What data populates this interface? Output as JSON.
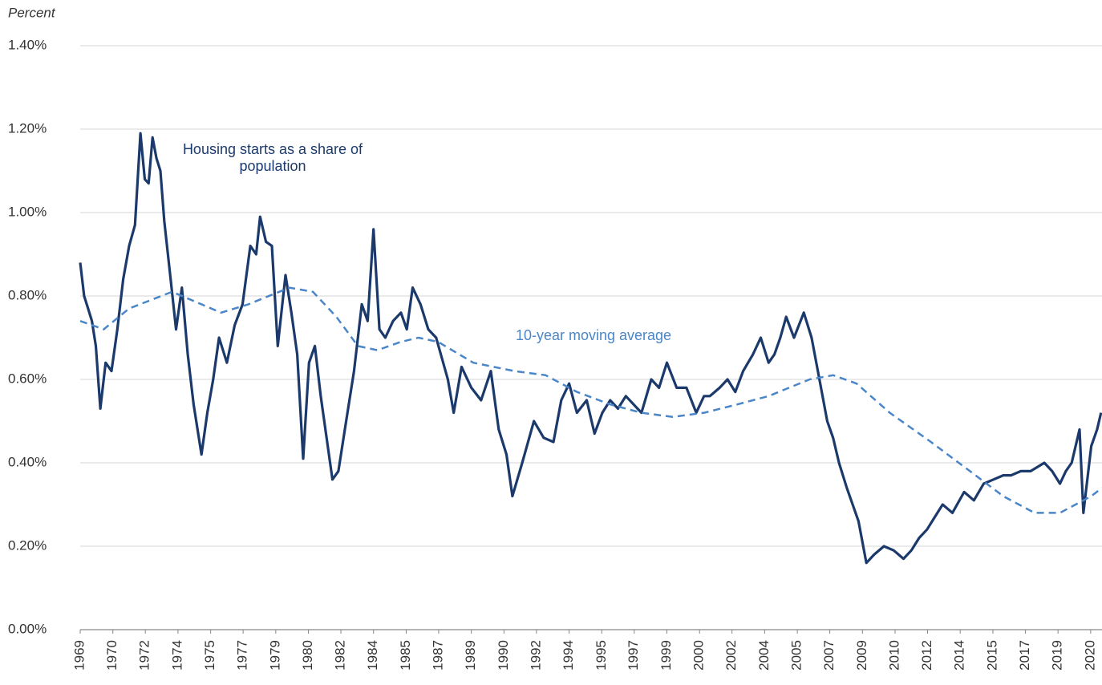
{
  "chart_data": {
    "type": "line",
    "ylabel": "Percent",
    "xlim": [
      1969,
      2021.25
    ],
    "ylim": [
      0,
      1.4
    ],
    "yticks": [
      {
        "value": 0,
        "label": "0.00%"
      },
      {
        "value": 0.2,
        "label": "0.20%"
      },
      {
        "value": 0.4,
        "label": "0.40%"
      },
      {
        "value": 0.6,
        "label": "0.60%"
      },
      {
        "value": 0.8,
        "label": "0.80%"
      },
      {
        "value": 1.0,
        "label": "1.00%"
      },
      {
        "value": 1.2,
        "label": "1.20%"
      },
      {
        "value": 1.4,
        "label": "1.40%"
      }
    ],
    "xticks": [
      {
        "value": 1969.0,
        "label": "1969"
      },
      {
        "value": 1970.67,
        "label": "1970"
      },
      {
        "value": 1972.33,
        "label": "1972"
      },
      {
        "value": 1974.0,
        "label": "1974"
      },
      {
        "value": 1975.67,
        "label": "1975"
      },
      {
        "value": 1977.33,
        "label": "1977"
      },
      {
        "value": 1979.0,
        "label": "1979"
      },
      {
        "value": 1980.67,
        "label": "1980"
      },
      {
        "value": 1982.33,
        "label": "1982"
      },
      {
        "value": 1984.0,
        "label": "1984"
      },
      {
        "value": 1985.67,
        "label": "1985"
      },
      {
        "value": 1987.33,
        "label": "1987"
      },
      {
        "value": 1989.0,
        "label": "1989"
      },
      {
        "value": 1990.67,
        "label": "1990"
      },
      {
        "value": 1992.33,
        "label": "1992"
      },
      {
        "value": 1994.0,
        "label": "1994"
      },
      {
        "value": 1995.67,
        "label": "1995"
      },
      {
        "value": 1997.33,
        "label": "1997"
      },
      {
        "value": 1999.0,
        "label": "1999"
      },
      {
        "value": 2000.67,
        "label": "2000"
      },
      {
        "value": 2002.33,
        "label": "2002"
      },
      {
        "value": 2004.0,
        "label": "2004"
      },
      {
        "value": 2005.67,
        "label": "2005"
      },
      {
        "value": 2007.33,
        "label": "2007"
      },
      {
        "value": 2009.0,
        "label": "2009"
      },
      {
        "value": 2010.67,
        "label": "2010"
      },
      {
        "value": 2012.33,
        "label": "2012"
      },
      {
        "value": 2014.0,
        "label": "2014"
      },
      {
        "value": 2015.67,
        "label": "2015"
      },
      {
        "value": 2017.33,
        "label": "2017"
      },
      {
        "value": 2019.0,
        "label": "2019"
      },
      {
        "value": 2020.67,
        "label": "2020"
      }
    ],
    "grid": true,
    "series": [
      {
        "name": "Housing starts as a share of population",
        "color": "#1b3a6b",
        "dashed": false,
        "x": [
          1969.0,
          1969.2,
          1969.4,
          1969.6,
          1969.8,
          1970.03,
          1970.3,
          1970.6,
          1970.9,
          1971.2,
          1971.5,
          1971.8,
          1972.08,
          1972.3,
          1972.5,
          1972.7,
          1972.9,
          1973.1,
          1973.3,
          1973.6,
          1973.9,
          1974.2,
          1974.5,
          1974.8,
          1975.2,
          1975.5,
          1975.8,
          1976.1,
          1976.5,
          1976.9,
          1977.3,
          1977.7,
          1978.0,
          1978.2,
          1978.5,
          1978.8,
          1979.1,
          1979.5,
          1979.8,
          1980.1,
          1980.4,
          1980.7,
          1981.0,
          1981.3,
          1981.6,
          1981.9,
          1982.2,
          1982.6,
          1983.0,
          1983.4,
          1983.7,
          1984.0,
          1984.3,
          1984.6,
          1985.0,
          1985.4,
          1985.7,
          1986.0,
          1986.4,
          1986.8,
          1987.2,
          1987.5,
          1987.8,
          1988.1,
          1988.5,
          1989.0,
          1989.5,
          1990.0,
          1990.4,
          1990.8,
          1991.1,
          1991.6,
          1992.2,
          1992.7,
          1993.2,
          1993.6,
          1994.0,
          1994.4,
          1994.9,
          1995.3,
          1995.7,
          1996.1,
          1996.5,
          1996.9,
          1997.3,
          1997.7,
          1998.2,
          1998.6,
          1999.0,
          1999.5,
          2000.0,
          2000.5,
          2000.9,
          2001.2,
          2001.7,
          2002.1,
          2002.5,
          2002.9,
          2003.4,
          2003.8,
          2004.2,
          2004.5,
          2004.8,
          2005.1,
          2005.5,
          2006.0,
          2006.4,
          2006.8,
          2007.2,
          2007.5,
          2007.8,
          2008.2,
          2008.5,
          2008.8,
          2009.2,
          2009.6,
          2010.1,
          2010.6,
          2011.1,
          2011.5,
          2011.9,
          2012.3,
          2012.7,
          2013.1,
          2013.6,
          2014.2,
          2014.7,
          2015.2,
          2015.7,
          2016.2,
          2016.6,
          2017.1,
          2017.6,
          2018.3,
          2018.7,
          2019.1,
          2019.4,
          2019.7,
          2020.1,
          2020.3,
          2020.7,
          2021.0,
          2021.2
        ],
        "values": [
          0.88,
          0.8,
          0.77,
          0.74,
          0.68,
          0.53,
          0.64,
          0.62,
          0.72,
          0.84,
          0.92,
          0.97,
          1.19,
          1.08,
          1.07,
          1.18,
          1.13,
          1.1,
          0.98,
          0.85,
          0.72,
          0.82,
          0.66,
          0.54,
          0.42,
          0.52,
          0.6,
          0.7,
          0.64,
          0.73,
          0.78,
          0.92,
          0.9,
          0.99,
          0.93,
          0.92,
          0.68,
          0.85,
          0.76,
          0.66,
          0.41,
          0.64,
          0.68,
          0.56,
          0.46,
          0.36,
          0.38,
          0.5,
          0.62,
          0.78,
          0.74,
          0.96,
          0.72,
          0.7,
          0.74,
          0.76,
          0.72,
          0.82,
          0.78,
          0.72,
          0.7,
          0.65,
          0.6,
          0.52,
          0.63,
          0.58,
          0.55,
          0.62,
          0.48,
          0.42,
          0.32,
          0.4,
          0.5,
          0.46,
          0.45,
          0.55,
          0.59,
          0.52,
          0.55,
          0.47,
          0.52,
          0.55,
          0.53,
          0.56,
          0.54,
          0.52,
          0.6,
          0.58,
          0.64,
          0.58,
          0.58,
          0.52,
          0.56,
          0.56,
          0.58,
          0.6,
          0.57,
          0.62,
          0.66,
          0.7,
          0.64,
          0.66,
          0.7,
          0.75,
          0.7,
          0.76,
          0.7,
          0.6,
          0.5,
          0.46,
          0.4,
          0.34,
          0.3,
          0.26,
          0.16,
          0.18,
          0.2,
          0.19,
          0.17,
          0.19,
          0.22,
          0.24,
          0.27,
          0.3,
          0.28,
          0.33,
          0.31,
          0.35,
          0.36,
          0.37,
          0.37,
          0.38,
          0.38,
          0.4,
          0.38,
          0.35,
          0.38,
          0.4,
          0.48,
          0.28,
          0.44,
          0.48,
          0.52
        ]
      },
      {
        "name": "10-year moving average",
        "color": "#4a86c8",
        "dashed": true,
        "x": [
          1969.0,
          1970.2,
          1971.5,
          1973.7,
          1975.2,
          1976.2,
          1977.6,
          1979.7,
          1980.9,
          1982.1,
          1983.2,
          1984.2,
          1985.4,
          1986.3,
          1987.3,
          1989.1,
          1991.2,
          1992.8,
          1994.4,
          1996.1,
          1997.7,
          1999.3,
          2000.9,
          2002.6,
          2004.2,
          2006.3,
          2007.5,
          2008.7,
          2010.4,
          2012.5,
          2014.5,
          2016.2,
          2017.8,
          2019.1,
          2020.7,
          2021.25
        ],
        "values": [
          0.74,
          0.72,
          0.77,
          0.81,
          0.78,
          0.76,
          0.78,
          0.82,
          0.81,
          0.75,
          0.68,
          0.67,
          0.69,
          0.7,
          0.69,
          0.64,
          0.62,
          0.61,
          0.57,
          0.54,
          0.52,
          0.51,
          0.52,
          0.54,
          0.56,
          0.6,
          0.61,
          0.59,
          0.52,
          0.45,
          0.38,
          0.32,
          0.28,
          0.28,
          0.32,
          0.34
        ]
      }
    ]
  }
}
